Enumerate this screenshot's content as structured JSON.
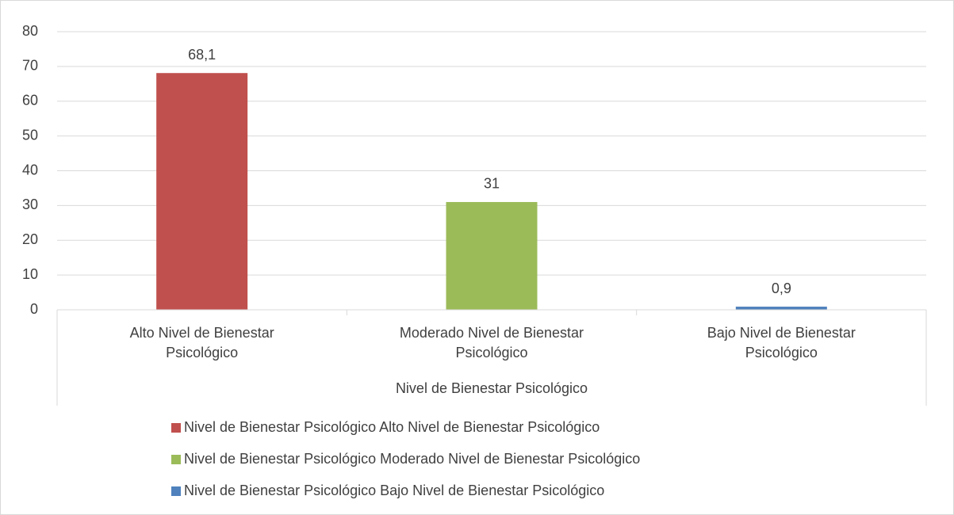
{
  "chart_data": {
    "type": "bar",
    "categories": [
      [
        "Alto Nivel de Bienestar",
        "Psicológico"
      ],
      [
        "Moderado Nivel de Bienestar",
        "Psicológico"
      ],
      [
        "Bajo Nivel de Bienestar",
        "Psicológico"
      ]
    ],
    "values": [
      68.1,
      31,
      0.9
    ],
    "value_labels": [
      "68,1",
      "31",
      "0,9"
    ],
    "colors": [
      "#c0504d",
      "#9bbb59",
      "#4f81bd"
    ],
    "x_label": "Nivel de Bienestar Psicológico",
    "legend": [
      "Nivel de Bienestar Psicológico Alto Nivel de Bienestar Psicológico",
      "Nivel de Bienestar Psicológico Moderado Nivel de Bienestar Psicológico",
      "Nivel de Bienestar Psicológico Bajo Nivel de Bienestar Psicológico"
    ],
    "ylim": [
      0,
      80
    ],
    "yticks": [
      0,
      10,
      20,
      30,
      40,
      50,
      60,
      70,
      80
    ],
    "grid": true
  }
}
